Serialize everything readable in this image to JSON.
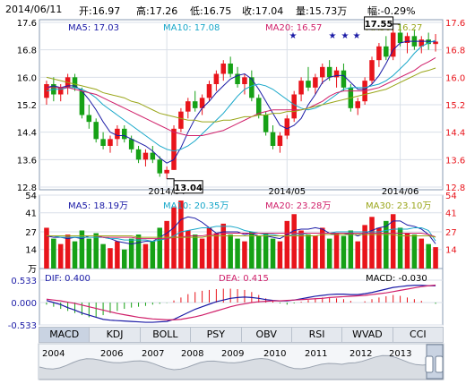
{
  "header": {
    "date": "2014/06/11",
    "open": "开:16.97",
    "high": "高:17.26",
    "low": "低:16.75",
    "close": "收:17.04",
    "volume": "量:15.73万",
    "change": "幅:-0.29%"
  },
  "price_panel": {
    "ma5": "MA5: 17.03",
    "ma10": "MA10: 17.08",
    "ma20": "MA20: 16.57",
    "ma30": "MA30: 16.27",
    "high_marker": "17.55",
    "low_marker": "13.04",
    "y_ticks": [
      "17.6",
      "16.8",
      "16.0",
      "15.2",
      "14.4",
      "13.6",
      "12.8"
    ],
    "x_ticks": [
      "2014/04",
      "2014/05",
      "2014/06"
    ]
  },
  "volume_panel": {
    "ma5": "MA5: 18.19万",
    "ma10": "MA10: 20.35万",
    "ma20": "MA20: 23.28万",
    "ma30": "MA30: 23.10万",
    "y_ticks": [
      "54",
      "41",
      "27",
      "14"
    ],
    "unit": "万"
  },
  "macd_panel": {
    "dif": "DIF: 0.400",
    "dea": "DEA: 0.415",
    "macd": "MACD: -0.030",
    "y_ticks": [
      "0.533",
      "0.000",
      "-0.533"
    ]
  },
  "tabs": [
    "MACD",
    "KDJ",
    "BOLL",
    "PSY",
    "OBV",
    "RSI",
    "WVAD",
    "CCI"
  ],
  "years": [
    "2004",
    "2006",
    "2007",
    "2008",
    "2009",
    "2010",
    "2011",
    "2012",
    "2013"
  ],
  "colors": {
    "up": "#e8141b",
    "down": "#16a116",
    "ma5": "#1a1aa6",
    "ma10": "#17a7c9",
    "ma20": "#d0206a",
    "ma30": "#9aa61a",
    "axis_left": "#000000",
    "axis_right": "#e8141b"
  },
  "chart_data": [
    {
      "type": "candlestick",
      "x_ticks": [
        "2014/04",
        "2014/05",
        "2014/06"
      ],
      "ylim": [
        12.8,
        17.6
      ],
      "annotations": {
        "high": 17.55,
        "low": 13.04
      },
      "ohlc": [
        [
          15.4,
          15.9,
          15.2,
          15.8
        ],
        [
          15.8,
          16.0,
          15.3,
          15.5
        ],
        [
          15.5,
          15.8,
          15.3,
          15.7
        ],
        [
          15.7,
          16.1,
          15.5,
          16.0
        ],
        [
          16.0,
          16.1,
          15.6,
          15.7
        ],
        [
          15.6,
          15.7,
          14.8,
          14.9
        ],
        [
          14.9,
          15.2,
          14.5,
          14.7
        ],
        [
          14.7,
          14.8,
          14.1,
          14.2
        ],
        [
          14.2,
          14.4,
          13.9,
          14.0
        ],
        [
          14.0,
          14.3,
          13.8,
          14.2
        ],
        [
          14.2,
          14.6,
          14.0,
          14.5
        ],
        [
          14.5,
          14.6,
          14.1,
          14.2
        ],
        [
          14.2,
          14.3,
          13.8,
          13.9
        ],
        [
          13.9,
          14.0,
          13.5,
          13.6
        ],
        [
          13.6,
          13.9,
          13.4,
          13.8
        ],
        [
          13.8,
          14.0,
          13.5,
          13.6
        ],
        [
          13.6,
          13.7,
          13.1,
          13.2
        ],
        [
          13.2,
          13.4,
          13.04,
          13.3
        ],
        [
          13.3,
          14.6,
          13.3,
          14.5
        ],
        [
          14.5,
          15.1,
          14.4,
          15.0
        ],
        [
          15.0,
          15.4,
          14.8,
          15.3
        ],
        [
          15.3,
          15.6,
          15.0,
          15.1
        ],
        [
          15.1,
          15.5,
          14.9,
          15.4
        ],
        [
          15.4,
          15.9,
          15.3,
          15.8
        ],
        [
          15.8,
          16.2,
          15.6,
          16.1
        ],
        [
          16.1,
          16.5,
          15.9,
          16.4
        ],
        [
          16.4,
          16.6,
          16.0,
          16.1
        ],
        [
          16.1,
          16.3,
          15.7,
          15.8
        ],
        [
          15.8,
          16.1,
          15.5,
          16.0
        ],
        [
          16.0,
          16.2,
          15.3,
          15.4
        ],
        [
          15.4,
          15.5,
          14.8,
          14.9
        ],
        [
          14.9,
          15.0,
          14.3,
          14.4
        ],
        [
          14.4,
          14.6,
          13.9,
          14.0
        ],
        [
          14.0,
          14.4,
          13.8,
          14.3
        ],
        [
          14.3,
          14.9,
          14.2,
          14.8
        ],
        [
          14.8,
          15.6,
          14.7,
          15.5
        ],
        [
          15.5,
          16.0,
          15.3,
          15.9
        ],
        [
          15.9,
          16.3,
          15.6,
          15.7
        ],
        [
          15.7,
          16.1,
          15.5,
          16.0
        ],
        [
          16.0,
          16.4,
          15.8,
          16.3
        ],
        [
          16.3,
          16.5,
          15.9,
          16.0
        ],
        [
          16.0,
          16.3,
          15.7,
          16.2
        ],
        [
          16.2,
          16.4,
          15.6,
          15.7
        ],
        [
          15.7,
          15.8,
          15.0,
          15.1
        ],
        [
          15.1,
          15.4,
          14.9,
          15.3
        ],
        [
          15.3,
          16.0,
          15.2,
          15.9
        ],
        [
          15.9,
          16.6,
          15.8,
          16.5
        ],
        [
          16.5,
          17.0,
          16.3,
          16.9
        ],
        [
          16.9,
          17.2,
          16.5,
          16.6
        ],
        [
          16.6,
          17.4,
          16.5,
          17.3
        ],
        [
          17.3,
          17.55,
          16.9,
          17.0
        ],
        [
          17.0,
          17.3,
          16.7,
          17.2
        ],
        [
          17.2,
          17.4,
          16.8,
          16.9
        ],
        [
          16.9,
          17.2,
          16.7,
          17.1
        ],
        [
          17.1,
          17.3,
          16.8,
          16.97
        ],
        [
          16.97,
          17.26,
          16.75,
          17.04
        ]
      ],
      "series": [
        {
          "name": "MA5",
          "values": [
            15.7,
            15.75,
            15.7,
            15.75,
            15.75,
            15.6,
            15.35,
            15.05,
            14.7,
            14.4,
            14.3,
            14.3,
            14.2,
            14.1,
            14.0,
            13.85,
            13.65,
            13.5,
            13.6,
            13.95,
            14.4,
            14.8,
            15.1,
            15.3,
            15.55,
            15.75,
            15.95,
            16.05,
            16.1,
            15.95,
            15.65,
            15.3,
            14.95,
            14.6,
            14.5,
            14.6,
            14.8,
            15.2,
            15.5,
            15.85,
            16.0,
            16.05,
            16.05,
            15.85,
            15.65,
            15.65,
            15.8,
            16.05,
            16.4,
            16.8,
            17.0,
            17.05,
            17.05,
            17.05,
            17.05,
            17.03
          ]
        },
        {
          "name": "MA10",
          "values": [
            15.6,
            15.65,
            15.65,
            15.7,
            15.7,
            15.65,
            15.55,
            15.4,
            15.2,
            15.05,
            14.9,
            14.75,
            14.6,
            14.45,
            14.3,
            14.15,
            14.0,
            13.9,
            13.85,
            13.9,
            14.0,
            14.15,
            14.35,
            14.55,
            14.75,
            14.95,
            15.2,
            15.45,
            15.65,
            15.75,
            15.8,
            15.75,
            15.65,
            15.5,
            15.35,
            15.2,
            15.1,
            15.05,
            15.1,
            15.2,
            15.35,
            15.5,
            15.65,
            15.7,
            15.7,
            15.7,
            15.75,
            15.8,
            15.9,
            16.05,
            16.25,
            16.45,
            16.7,
            16.9,
            17.0,
            17.08
          ]
        },
        {
          "name": "MA20",
          "values": [
            15.7,
            15.7,
            15.7,
            15.7,
            15.65,
            15.6,
            15.55,
            15.5,
            15.4,
            15.3,
            15.2,
            15.1,
            15.0,
            14.9,
            14.8,
            14.7,
            14.6,
            14.5,
            14.4,
            14.35,
            14.3,
            14.3,
            14.3,
            14.35,
            14.4,
            14.45,
            14.55,
            14.65,
            14.75,
            14.85,
            14.95,
            15.0,
            15.05,
            15.05,
            15.05,
            15.05,
            15.05,
            15.1,
            15.2,
            15.3,
            15.45,
            15.55,
            15.6,
            15.6,
            15.6,
            15.6,
            15.65,
            15.7,
            15.8,
            15.9,
            16.0,
            16.1,
            16.2,
            16.35,
            16.45,
            16.57
          ]
        },
        {
          "name": "MA30",
          "values": [
            16.0,
            15.95,
            15.9,
            15.85,
            15.8,
            15.75,
            15.7,
            15.65,
            15.55,
            15.5,
            15.45,
            15.4,
            15.3,
            15.25,
            15.15,
            15.05,
            14.95,
            14.9,
            14.85,
            14.8,
            14.75,
            14.75,
            14.7,
            14.7,
            14.7,
            14.75,
            14.75,
            14.8,
            14.85,
            14.85,
            14.9,
            14.9,
            14.95,
            14.95,
            15.0,
            15.0,
            15.05,
            15.1,
            15.15,
            15.2,
            15.25,
            15.3,
            15.35,
            15.4,
            15.45,
            15.5,
            15.55,
            15.6,
            15.65,
            15.75,
            15.85,
            15.95,
            16.05,
            16.15,
            16.2,
            16.27
          ]
        }
      ]
    },
    {
      "type": "bar",
      "ylim": [
        0,
        54
      ],
      "unit": "万",
      "values": [
        30,
        22,
        18,
        25,
        20,
        28,
        22,
        26,
        18,
        15,
        20,
        14,
        22,
        25,
        18,
        20,
        30,
        35,
        45,
        50,
        28,
        25,
        22,
        30,
        26,
        33,
        25,
        22,
        20,
        27,
        24,
        26,
        22,
        20,
        35,
        40,
        28,
        25,
        24,
        30,
        22,
        26,
        24,
        28,
        20,
        32,
        38,
        30,
        35,
        40,
        30,
        26,
        25,
        22,
        18,
        15.73
      ],
      "series": [
        {
          "name": "MA5",
          "values": [
            24,
            23,
            23,
            22,
            23,
            22,
            24,
            24,
            23,
            22,
            20,
            19,
            18,
            19,
            20,
            20,
            23,
            26,
            30,
            36,
            38,
            37,
            34,
            30,
            26,
            27,
            27,
            27,
            25,
            26,
            24,
            24,
            23,
            22,
            25,
            28,
            29,
            29,
            30,
            29,
            26,
            25,
            25,
            26,
            24,
            26,
            28,
            30,
            31,
            35,
            35,
            32,
            31,
            29,
            25,
            18.19
          ]
        },
        {
          "name": "MA10",
          "values": [
            24,
            24,
            23,
            23,
            23,
            23,
            23,
            23,
            23,
            22,
            22,
            21,
            21,
            21,
            21,
            20,
            21,
            22,
            24,
            27,
            28,
            29,
            30,
            30,
            31,
            31,
            31,
            30,
            28,
            27,
            26,
            25,
            25,
            24,
            24,
            25,
            25,
            26,
            26,
            26,
            26,
            27,
            27,
            27,
            27,
            27,
            27,
            27,
            28,
            29,
            29,
            29,
            30,
            30,
            28,
            20.35
          ]
        },
        {
          "name": "MA20",
          "values": [
            24,
            24,
            24,
            24,
            24,
            24,
            24,
            24,
            23,
            23,
            23,
            23,
            23,
            22,
            22,
            22,
            22,
            22,
            23,
            23,
            24,
            24,
            24,
            25,
            25,
            26,
            26,
            26,
            26,
            26,
            26,
            26,
            26,
            26,
            26,
            26,
            26,
            26,
            26,
            26,
            26,
            26,
            26,
            26,
            26,
            26,
            26,
            26,
            26,
            26,
            26,
            26,
            26,
            26,
            25,
            23.28
          ]
        },
        {
          "name": "MA30",
          "values": [
            24,
            24,
            24,
            24,
            24,
            24,
            24,
            24,
            24,
            24,
            24,
            24,
            24,
            23,
            23,
            23,
            23,
            23,
            23,
            23,
            23,
            23,
            23,
            24,
            24,
            24,
            24,
            24,
            24,
            24,
            24,
            24,
            24,
            24,
            24,
            24,
            24,
            24,
            24,
            25,
            25,
            25,
            25,
            25,
            25,
            25,
            25,
            25,
            25,
            25,
            24,
            24,
            24,
            24,
            24,
            23.1
          ]
        }
      ]
    },
    {
      "type": "bar",
      "ylim": [
        -0.533,
        0.533
      ],
      "values": [
        -0.05,
        -0.1,
        -0.15,
        -0.2,
        -0.25,
        -0.3,
        -0.35,
        -0.35,
        -0.3,
        -0.25,
        -0.2,
        -0.15,
        -0.12,
        -0.1,
        -0.08,
        -0.05,
        -0.03,
        -0.01,
        0.05,
        0.12,
        0.2,
        0.25,
        0.28,
        0.3,
        0.32,
        0.33,
        0.33,
        0.32,
        0.3,
        0.25,
        0.18,
        0.1,
        0.04,
        -0.02,
        -0.05,
        -0.02,
        0.02,
        0.06,
        0.1,
        0.12,
        0.12,
        0.1,
        0.08,
        0.04,
        0.0,
        0.03,
        0.08,
        0.12,
        0.15,
        0.18,
        0.16,
        0.12,
        0.08,
        0.04,
        0.0,
        -0.03
      ],
      "series": [
        {
          "name": "DIF",
          "values": [
            0.05,
            0.0,
            -0.05,
            -0.12,
            -0.18,
            -0.25,
            -0.3,
            -0.35,
            -0.4,
            -0.42,
            -0.43,
            -0.44,
            -0.45,
            -0.46,
            -0.47,
            -0.47,
            -0.46,
            -0.45,
            -0.4,
            -0.32,
            -0.24,
            -0.16,
            -0.1,
            -0.04,
            0.02,
            0.06,
            0.1,
            0.12,
            0.13,
            0.12,
            0.1,
            0.07,
            0.05,
            0.04,
            0.04,
            0.06,
            0.09,
            0.12,
            0.15,
            0.17,
            0.19,
            0.2,
            0.2,
            0.19,
            0.19,
            0.21,
            0.24,
            0.28,
            0.32,
            0.36,
            0.38,
            0.4,
            0.41,
            0.41,
            0.4,
            0.4
          ]
        },
        {
          "name": "DEA",
          "values": [
            0.08,
            0.06,
            0.04,
            0.01,
            -0.02,
            -0.06,
            -0.1,
            -0.14,
            -0.18,
            -0.22,
            -0.26,
            -0.29,
            -0.32,
            -0.35,
            -0.37,
            -0.39,
            -0.4,
            -0.41,
            -0.41,
            -0.4,
            -0.37,
            -0.34,
            -0.3,
            -0.25,
            -0.2,
            -0.15,
            -0.1,
            -0.06,
            -0.03,
            0.0,
            0.02,
            0.03,
            0.04,
            0.04,
            0.05,
            0.06,
            0.07,
            0.08,
            0.09,
            0.1,
            0.12,
            0.13,
            0.14,
            0.15,
            0.16,
            0.17,
            0.19,
            0.21,
            0.23,
            0.26,
            0.29,
            0.32,
            0.35,
            0.38,
            0.4,
            0.415
          ]
        }
      ]
    }
  ]
}
